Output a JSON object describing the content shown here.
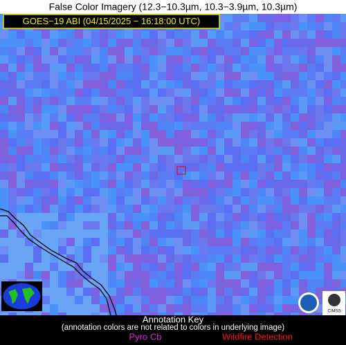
{
  "header": {
    "title": "False Color Imagery (12.3−10.3µm, 10.3−3.9µm, 10.3µm)"
  },
  "label": {
    "text": "GOES−19 ABI (04/15/2025 − 16:18:00 UTC)"
  },
  "key": {
    "title": "Annotation Key",
    "note": "(annotation colors are not related to colors in underlying image)",
    "items": [
      "Pyro Cb",
      "Wildfire Detection"
    ]
  },
  "logos": {
    "cimss": "CIMSS"
  }
}
